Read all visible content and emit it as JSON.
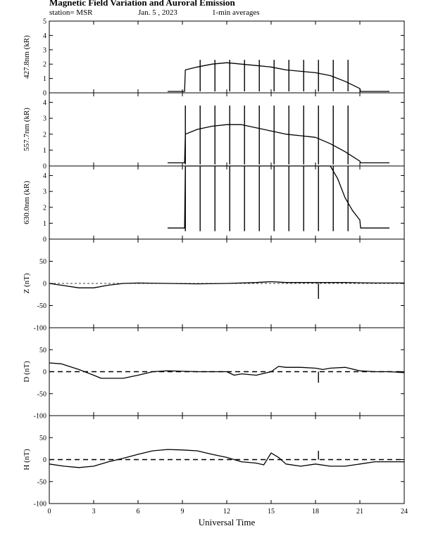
{
  "title": "Magnetic Field Variation and Auroral Emission",
  "station": "station= MSR",
  "date": "Jan. 5 , 2023",
  "averaging": "1-min averages",
  "chart_data": [
    {
      "type": "line",
      "ylabel": "427.8nm (kR)",
      "ylim": [
        0,
        5
      ],
      "yticks": [
        0,
        1,
        2,
        3,
        4,
        5
      ],
      "xlim": [
        0,
        24
      ],
      "x": [
        8.0,
        9.15,
        9.2,
        10,
        11,
        12,
        13,
        14,
        15,
        16,
        17,
        18,
        19,
        20,
        21,
        21.05,
        23.0
      ],
      "values": [
        0.1,
        0.1,
        1.6,
        1.8,
        2.0,
        2.1,
        2.0,
        1.9,
        1.8,
        1.6,
        1.5,
        1.4,
        1.2,
        0.8,
        0.3,
        0.1,
        0.1
      ],
      "spikes_x": [
        10.2,
        11.2,
        12.2,
        13.2,
        14.2,
        15.2,
        16.2,
        17.2,
        18.2,
        19.2,
        20.2
      ],
      "spike_top": 2.3
    },
    {
      "type": "line",
      "ylabel": "557.7nm (kR)",
      "ylim": [
        0,
        4.6
      ],
      "yticks": [
        0,
        1,
        2,
        3,
        4
      ],
      "xlim": [
        0,
        24
      ],
      "x": [
        8.0,
        9.15,
        9.2,
        10,
        11,
        12,
        13,
        14,
        15,
        16,
        17,
        18,
        19,
        20,
        21,
        21.05,
        23.0
      ],
      "values": [
        0.2,
        0.2,
        2.0,
        2.3,
        2.5,
        2.6,
        2.6,
        2.4,
        2.2,
        2.0,
        1.9,
        1.8,
        1.4,
        0.9,
        0.3,
        0.2,
        0.2
      ],
      "spikes_x": [
        9.2,
        10.2,
        11.2,
        12.2,
        13.2,
        14.2,
        15.2,
        16.2,
        17.2,
        18.2,
        19.2,
        20.2
      ],
      "spike_top": 3.8
    },
    {
      "type": "line",
      "ylabel": "630.0nm (kR)",
      "ylim": [
        0,
        4.6
      ],
      "yticks": [
        0,
        1,
        2,
        3,
        4
      ],
      "xlim": [
        0,
        24
      ],
      "x": [
        8.0,
        9.15,
        9.2,
        10,
        12,
        14,
        16,
        18,
        19,
        19.5,
        20,
        20.5,
        21,
        21.05,
        23.0
      ],
      "values": [
        0.7,
        0.7,
        4.6,
        4.6,
        4.6,
        4.6,
        4.6,
        4.6,
        4.6,
        3.8,
        2.6,
        1.8,
        1.2,
        0.7,
        0.7
      ],
      "spikes_x": [
        9.2,
        10.2,
        11.2,
        12.2,
        13.2,
        14.2,
        15.2,
        16.2,
        17.2,
        18.2,
        19.2,
        20.2
      ],
      "spike_bottom": 0.5
    },
    {
      "type": "line",
      "ylabel": "Z (nT)",
      "ylim": [
        -100,
        100
      ],
      "yticks": [
        -100,
        -50,
        0,
        50
      ],
      "zero_line": "thin-dashed",
      "xlim": [
        0,
        24
      ],
      "x": [
        0,
        1,
        2,
        3,
        4,
        5,
        6,
        8,
        10,
        12,
        14,
        15,
        16,
        18,
        20,
        22,
        24
      ],
      "values": [
        0,
        -5,
        -10,
        -10,
        -4,
        0,
        1,
        0,
        -1,
        0,
        2,
        4,
        2,
        2,
        2,
        1,
        1
      ],
      "spikes_x": [
        18.2
      ],
      "spike_values": [
        -35
      ]
    },
    {
      "type": "line",
      "ylabel": "D (nT)",
      "ylim": [
        -100,
        100
      ],
      "yticks": [
        -100,
        -50,
        0,
        50
      ],
      "zero_line": "dashed",
      "xlim": [
        0,
        24
      ],
      "x": [
        0,
        0.8,
        2,
        3,
        3.5,
        5,
        6,
        7,
        8,
        10,
        12,
        12.5,
        13,
        14,
        15,
        15.5,
        16,
        17,
        18,
        18.5,
        19,
        20,
        21,
        22,
        23,
        24
      ],
      "values": [
        20,
        18,
        5,
        -8,
        -15,
        -15,
        -8,
        0,
        2,
        0,
        0,
        -8,
        -5,
        -8,
        0,
        12,
        10,
        10,
        8,
        5,
        8,
        10,
        2,
        0,
        0,
        -2
      ],
      "spikes_x": [
        18.2
      ],
      "spike_values": [
        -25
      ]
    },
    {
      "type": "line",
      "ylabel": "H (nT)",
      "ylim": [
        -100,
        100
      ],
      "yticks": [
        -100,
        -50,
        0,
        50
      ],
      "zero_line": "dashed",
      "xlim": [
        0,
        24
      ],
      "x": [
        0,
        1,
        2,
        3,
        4,
        5,
        6,
        7,
        8,
        9,
        10,
        11,
        12,
        13,
        14,
        14.5,
        15,
        15.5,
        16,
        17,
        18,
        19,
        20,
        21,
        22,
        23,
        24
      ],
      "values": [
        -10,
        -15,
        -18,
        -15,
        -5,
        3,
        12,
        20,
        23,
        22,
        20,
        12,
        5,
        -5,
        -8,
        -12,
        15,
        5,
        -10,
        -15,
        -10,
        -15,
        -15,
        -10,
        -5,
        -5,
        -5
      ],
      "spikes_x": [
        18.2
      ],
      "spike_values": [
        20
      ]
    }
  ],
  "x_axis": {
    "label": "Universal Time",
    "ticks": [
      0,
      3,
      6,
      9,
      12,
      15,
      18,
      21,
      24
    ],
    "tick_labels": [
      "0",
      "3",
      "6",
      "9",
      "12",
      "15",
      "18",
      "21",
      "24"
    ]
  }
}
